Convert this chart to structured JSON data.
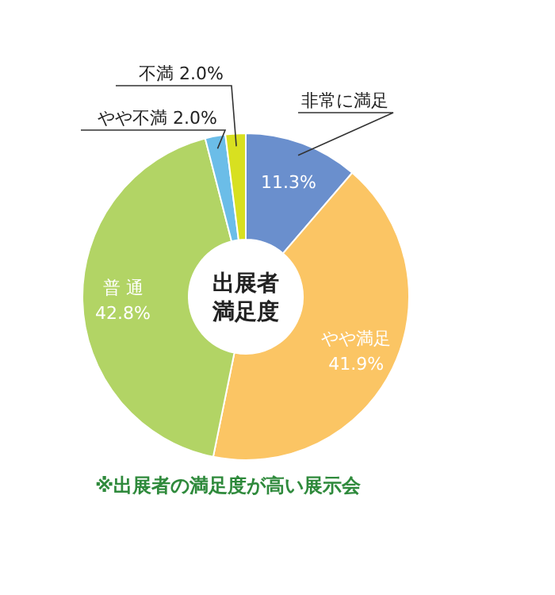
{
  "chart_data": {
    "type": "donut",
    "title": "出展者満足度",
    "categories": [
      "非常に満足",
      "やや満足",
      "普 通",
      "やや不満",
      "不満"
    ],
    "values": [
      11.3,
      41.9,
      42.8,
      2.0,
      2.0
    ],
    "value_labels": [
      "11.3%",
      "41.9%",
      "42.8%",
      "2.0%",
      "2.0%"
    ],
    "colors": [
      "#6a8fcd",
      "#fbc564",
      "#b2d465",
      "#6bbde8",
      "#d8e020"
    ],
    "annotations": [
      "※出展者の満足度が高い展示会"
    ]
  }
}
